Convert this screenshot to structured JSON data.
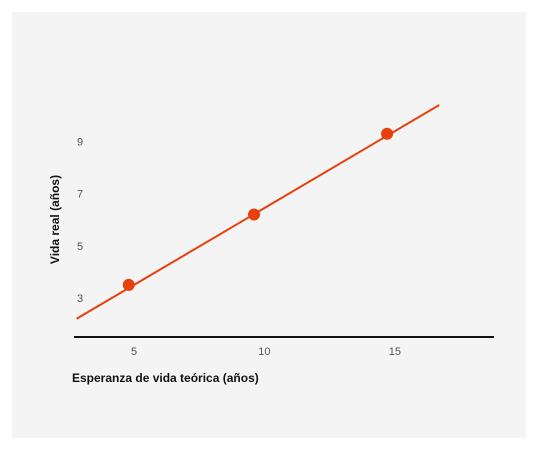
{
  "chart_data": {
    "type": "line",
    "title": "",
    "xlabel": "Esperanza de vida teórica (años)",
    "ylabel": "Vida real (años)",
    "xlim": [
      2.7,
      18.8
    ],
    "ylim": [
      1.5,
      10.9
    ],
    "x_ticks": [
      5,
      10,
      15
    ],
    "y_ticks": [
      3,
      5,
      7,
      9
    ],
    "grid": false,
    "legend": "none",
    "series": [
      {
        "line": [
          [
            2.8,
            2.2
          ],
          [
            16.7,
            10.4
          ]
        ],
        "points": [
          {
            "x": 4.8,
            "y": 3.5
          },
          {
            "x": 9.6,
            "y": 6.2
          },
          {
            "x": 14.7,
            "y": 9.3
          }
        ]
      }
    ],
    "colors": {
      "series": "#e8400c",
      "axis": "#111111",
      "background": "#f4f4f4"
    }
  }
}
